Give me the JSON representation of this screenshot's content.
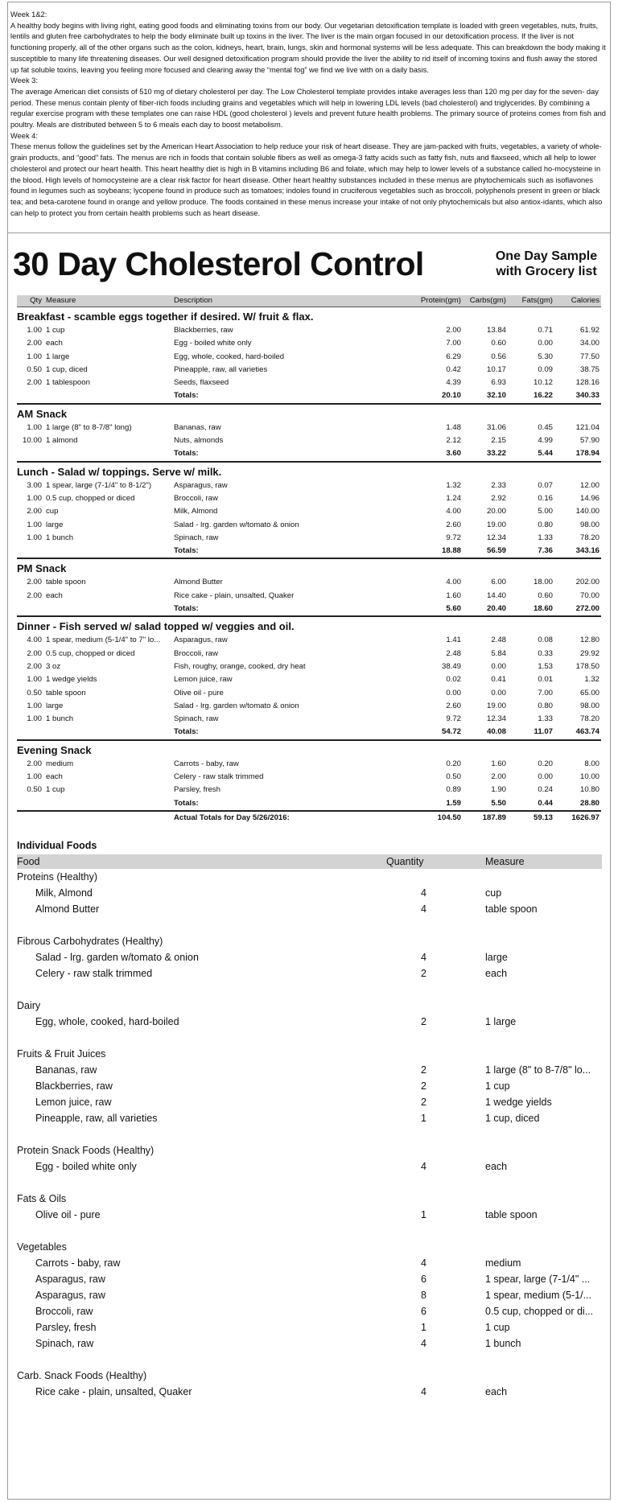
{
  "intro": [
    {
      "heading": "Week 1&2:",
      "text": "A healthy body begins with living right, eating good foods and eliminating toxins from our body. Our vegetarian detoxification template is loaded with green vegetables, nuts, fruits, lentils and gluten free carbohydrates to help the body eliminate built up toxins in the liver. The liver is the main organ focused in our detoxification process. If the liver is not functioning properly, all of the other organs such as the colon, kidneys, heart, brain, lungs, skin and hormonal systems will be less adequate. This can breakdown the body making it susceptible to many life threatening diseases. Our well designed detoxification program should provide the liver the ability to rid itself of incoming toxins and flush away the stored up fat soluble toxins, leaving you feeling more focused and clearing away the “mental fog” we find we live with on a daily basis."
    },
    {
      "heading": "Week 3:",
      "text": "The average American diet consists of 510 mg of dietary cholesterol per day. The Low Cholesterol template provides intake averages less than 120 mg per day for the seven- day period. These menus contain plenty of fiber-rich foods including grains and vegetables which will help in lowering LDL levels (bad cholesterol) and triglycerides. By combining a regular exercise program with these templates one can raise HDL (good cholesterol ) levels and prevent future health problems. The primary source of proteins comes from fish and poultry. Meals are distributed between 5 to 6 meals each day to boost metabolism."
    },
    {
      "heading": "Week 4:",
      "text": "These menus follow the guidelines set by the American Heart Association to help reduce your risk of heart disease. They are jam-packed with fruits, vegetables, a variety of whole-grain products, and “good” fats. The menus are rich in foods that contain soluble fibers as well as omega-3 fatty acids such as fatty fish, nuts and flaxseed, which all help to lower cholesterol and protect our heart health. This heart healthy diet is high in B vitamins including B6 and folate, which may help to lower levels of a substance called ho-mocysteine in the blood. High levels of homocysteine are a clear risk factor for heart disease. Other heart healthy substances included in these menus are phytochemicals such as isoflavones found in legumes such as soybeans; lycopene found in produce such as tomatoes; indoles found in cruciferous vegetables such as broccoli, polyphenols present in green or black tea; and beta-carotene found in orange and yellow produce. The foods contained in these menus increase your intake of not only phytochemicals but also antiox-idants, which also can help to protect you from certain health problems such as heart disease."
    }
  ],
  "title": "30 Day Cholesterol Control",
  "subtitle": [
    "One Day Sample",
    "with Grocery list"
  ],
  "meal_table": {
    "columns": [
      "Qty",
      "Measure",
      "Description",
      "Protein(gm)",
      "Carbs(gm)",
      "Fats(gm)",
      "Calories"
    ],
    "meals": [
      {
        "name": "Breakfast - scamble eggs together if desired. W/ fruit & flax.",
        "rows": [
          [
            "1.00",
            "1 cup",
            "Blackberries, raw",
            "2.00",
            "13.84",
            "0.71",
            "61.92"
          ],
          [
            "2.00",
            "each",
            "Egg - boiled white only",
            "7.00",
            "0.60",
            "0.00",
            "34.00"
          ],
          [
            "1.00",
            "1 large",
            "Egg, whole, cooked, hard-boiled",
            "6.29",
            "0.56",
            "5.30",
            "77.50"
          ],
          [
            "0.50",
            "1 cup, diced",
            "Pineapple, raw, all varieties",
            "0.42",
            "10.17",
            "0.09",
            "38.75"
          ],
          [
            "2.00",
            "1 tablespoon",
            "Seeds, flaxseed",
            "4.39",
            "6.93",
            "10.12",
            "128.16"
          ]
        ],
        "totals_label": "Totals:",
        "totals": [
          "20.10",
          "32.10",
          "16.22",
          "340.33"
        ]
      },
      {
        "name": "AM Snack",
        "rows": [
          [
            "1.00",
            "1 large (8\" to 8-7/8\" long)",
            "Bananas, raw",
            "1.48",
            "31.06",
            "0.45",
            "121.04"
          ],
          [
            "10.00",
            "1 almond",
            "Nuts, almonds",
            "2.12",
            "2.15",
            "4.99",
            "57.90"
          ]
        ],
        "totals_label": "Totals:",
        "totals": [
          "3.60",
          "33.22",
          "5.44",
          "178.94"
        ]
      },
      {
        "name": "Lunch - Salad w/ toppings. Serve w/ milk.",
        "rows": [
          [
            "3.00",
            "1 spear, large (7-1/4\" to 8-1/2\")",
            "Asparagus, raw",
            "1.32",
            "2.33",
            "0.07",
            "12.00"
          ],
          [
            "1.00",
            "0.5 cup, chopped or diced",
            "Broccoli, raw",
            "1.24",
            "2.92",
            "0.16",
            "14.96"
          ],
          [
            "2.00",
            "cup",
            "Milk, Almond",
            "4.00",
            "20.00",
            "5.00",
            "140.00"
          ],
          [
            "1.00",
            "large",
            "Salad - lrg. garden w/tomato & onion",
            "2.60",
            "19.00",
            "0.80",
            "98.00"
          ],
          [
            "1.00",
            "1 bunch",
            "Spinach, raw",
            "9.72",
            "12.34",
            "1.33",
            "78.20"
          ]
        ],
        "totals_label": "Totals:",
        "totals": [
          "18.88",
          "56.59",
          "7.36",
          "343.16"
        ]
      },
      {
        "name": "PM Snack",
        "rows": [
          [
            "2.00",
            "table spoon",
            "Almond Butter",
            "4.00",
            "6.00",
            "18.00",
            "202.00"
          ],
          [
            "2.00",
            "each",
            "Rice cake - plain, unsalted, Quaker",
            "1.60",
            "14.40",
            "0.60",
            "70.00"
          ]
        ],
        "totals_label": "Totals:",
        "totals": [
          "5.60",
          "20.40",
          "18.60",
          "272.00"
        ]
      },
      {
        "name": "Dinner - Fish served w/ salad topped w/ veggies and oil.",
        "rows": [
          [
            "4.00",
            "1 spear, medium (5-1/4\" to 7\" lo...",
            "Asparagus, raw",
            "1.41",
            "2.48",
            "0.08",
            "12.80"
          ],
          [
            "2.00",
            "0.5 cup, chopped or diced",
            "Broccoli, raw",
            "2.48",
            "5.84",
            "0.33",
            "29.92"
          ],
          [
            "2.00",
            "3 oz",
            "Fish, roughy, orange, cooked, dry heat",
            "38.49",
            "0.00",
            "1.53",
            "178.50"
          ],
          [
            "1.00",
            "1 wedge yields",
            "Lemon juice, raw",
            "0.02",
            "0.41",
            "0.01",
            "1.32"
          ],
          [
            "0.50",
            "table spoon",
            "Olive oil - pure",
            "0.00",
            "0.00",
            "7.00",
            "65.00"
          ],
          [
            "1.00",
            "large",
            "Salad - lrg. garden w/tomato & onion",
            "2.60",
            "19.00",
            "0.80",
            "98.00"
          ],
          [
            "1.00",
            "1 bunch",
            "Spinach, raw",
            "9.72",
            "12.34",
            "1.33",
            "78.20"
          ]
        ],
        "totals_label": "Totals:",
        "totals": [
          "54.72",
          "40.08",
          "11.07",
          "463.74"
        ]
      },
      {
        "name": "Evening Snack",
        "rows": [
          [
            "2.00",
            "medium",
            "Carrots - baby, raw",
            "0.20",
            "1.60",
            "0.20",
            "8.00"
          ],
          [
            "1.00",
            "each",
            "Celery - raw stalk trimmed",
            "0.50",
            "2.00",
            "0.00",
            "10.00"
          ],
          [
            "0.50",
            "1 cup",
            "Parsley, fresh",
            "0.89",
            "1.90",
            "0.24",
            "10.80"
          ]
        ],
        "totals_label": "Totals:",
        "totals": [
          "1.59",
          "5.50",
          "0.44",
          "28.80"
        ]
      }
    ],
    "day_totals": {
      "label": "Actual Totals for Day 5/26/2016:",
      "values": [
        "104.50",
        "187.89",
        "59.13",
        "1626.97"
      ]
    }
  },
  "grocery": {
    "title": "Individual Foods",
    "columns": [
      "Food",
      "Quantity",
      "Measure"
    ],
    "groups": [
      {
        "name": "Proteins (Healthy)",
        "items": [
          [
            "Milk, Almond",
            "4",
            "cup"
          ],
          [
            "Almond Butter",
            "4",
            "table spoon"
          ]
        ]
      },
      {
        "name": "Fibrous Carbohydrates (Healthy)",
        "items": [
          [
            "Salad - lrg. garden w/tomato & onion",
            "4",
            "large"
          ],
          [
            "Celery - raw stalk trimmed",
            "2",
            "each"
          ]
        ]
      },
      {
        "name": "Dairy",
        "items": [
          [
            "Egg, whole, cooked, hard-boiled",
            "2",
            "1 large"
          ]
        ]
      },
      {
        "name": "Fruits & Fruit Juices",
        "items": [
          [
            "Bananas, raw",
            "2",
            "1 large (8\" to 8-7/8\" lo..."
          ],
          [
            "Blackberries, raw",
            "2",
            "1 cup"
          ],
          [
            "Lemon juice, raw",
            "2",
            "1 wedge yields"
          ],
          [
            "Pineapple, raw, all varieties",
            "1",
            "1 cup, diced"
          ]
        ]
      },
      {
        "name": "Protein Snack Foods (Healthy)",
        "items": [
          [
            "Egg - boiled white only",
            "4",
            "each"
          ]
        ]
      },
      {
        "name": "Fats & Oils",
        "items": [
          [
            "Olive oil - pure",
            "1",
            "table spoon"
          ]
        ]
      },
      {
        "name": "Vegetables",
        "items": [
          [
            "Carrots - baby, raw",
            "4",
            "medium"
          ],
          [
            "Asparagus, raw",
            "6",
            "1 spear, large (7-1/4\" ..."
          ],
          [
            "Asparagus, raw",
            "8",
            "1 spear, medium (5-1/..."
          ],
          [
            "Broccoli, raw",
            "6",
            "0.5 cup, chopped or di..."
          ],
          [
            "Parsley, fresh",
            "1",
            "1 cup"
          ],
          [
            "Spinach, raw",
            "4",
            "1 bunch"
          ]
        ]
      },
      {
        "name": "Carb. Snack Foods (Healthy)",
        "items": [
          [
            "Rice cake - plain, unsalted, Quaker",
            "4",
            "each"
          ]
        ]
      }
    ]
  }
}
